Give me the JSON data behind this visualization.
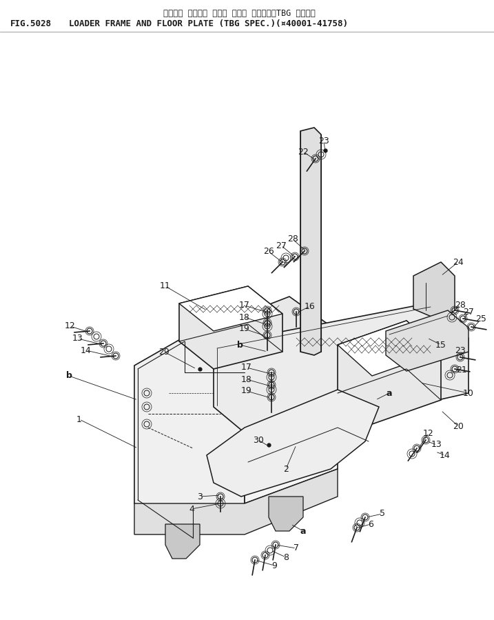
{
  "title_japanese": "ローダー フレーム および フロア プレート（TBG ショウ）",
  "title_fig": "FIG.5028",
  "title_english": "LOADER FRAME AND FLOOR PLATE (TBG SPEC.)(¤40001-41758)",
  "bg_color": "#ffffff",
  "line_color": "#1a1a1a",
  "text_color": "#1a1a1a",
  "fig_width": 7.17,
  "fig_height": 8.99,
  "dpi": 100
}
